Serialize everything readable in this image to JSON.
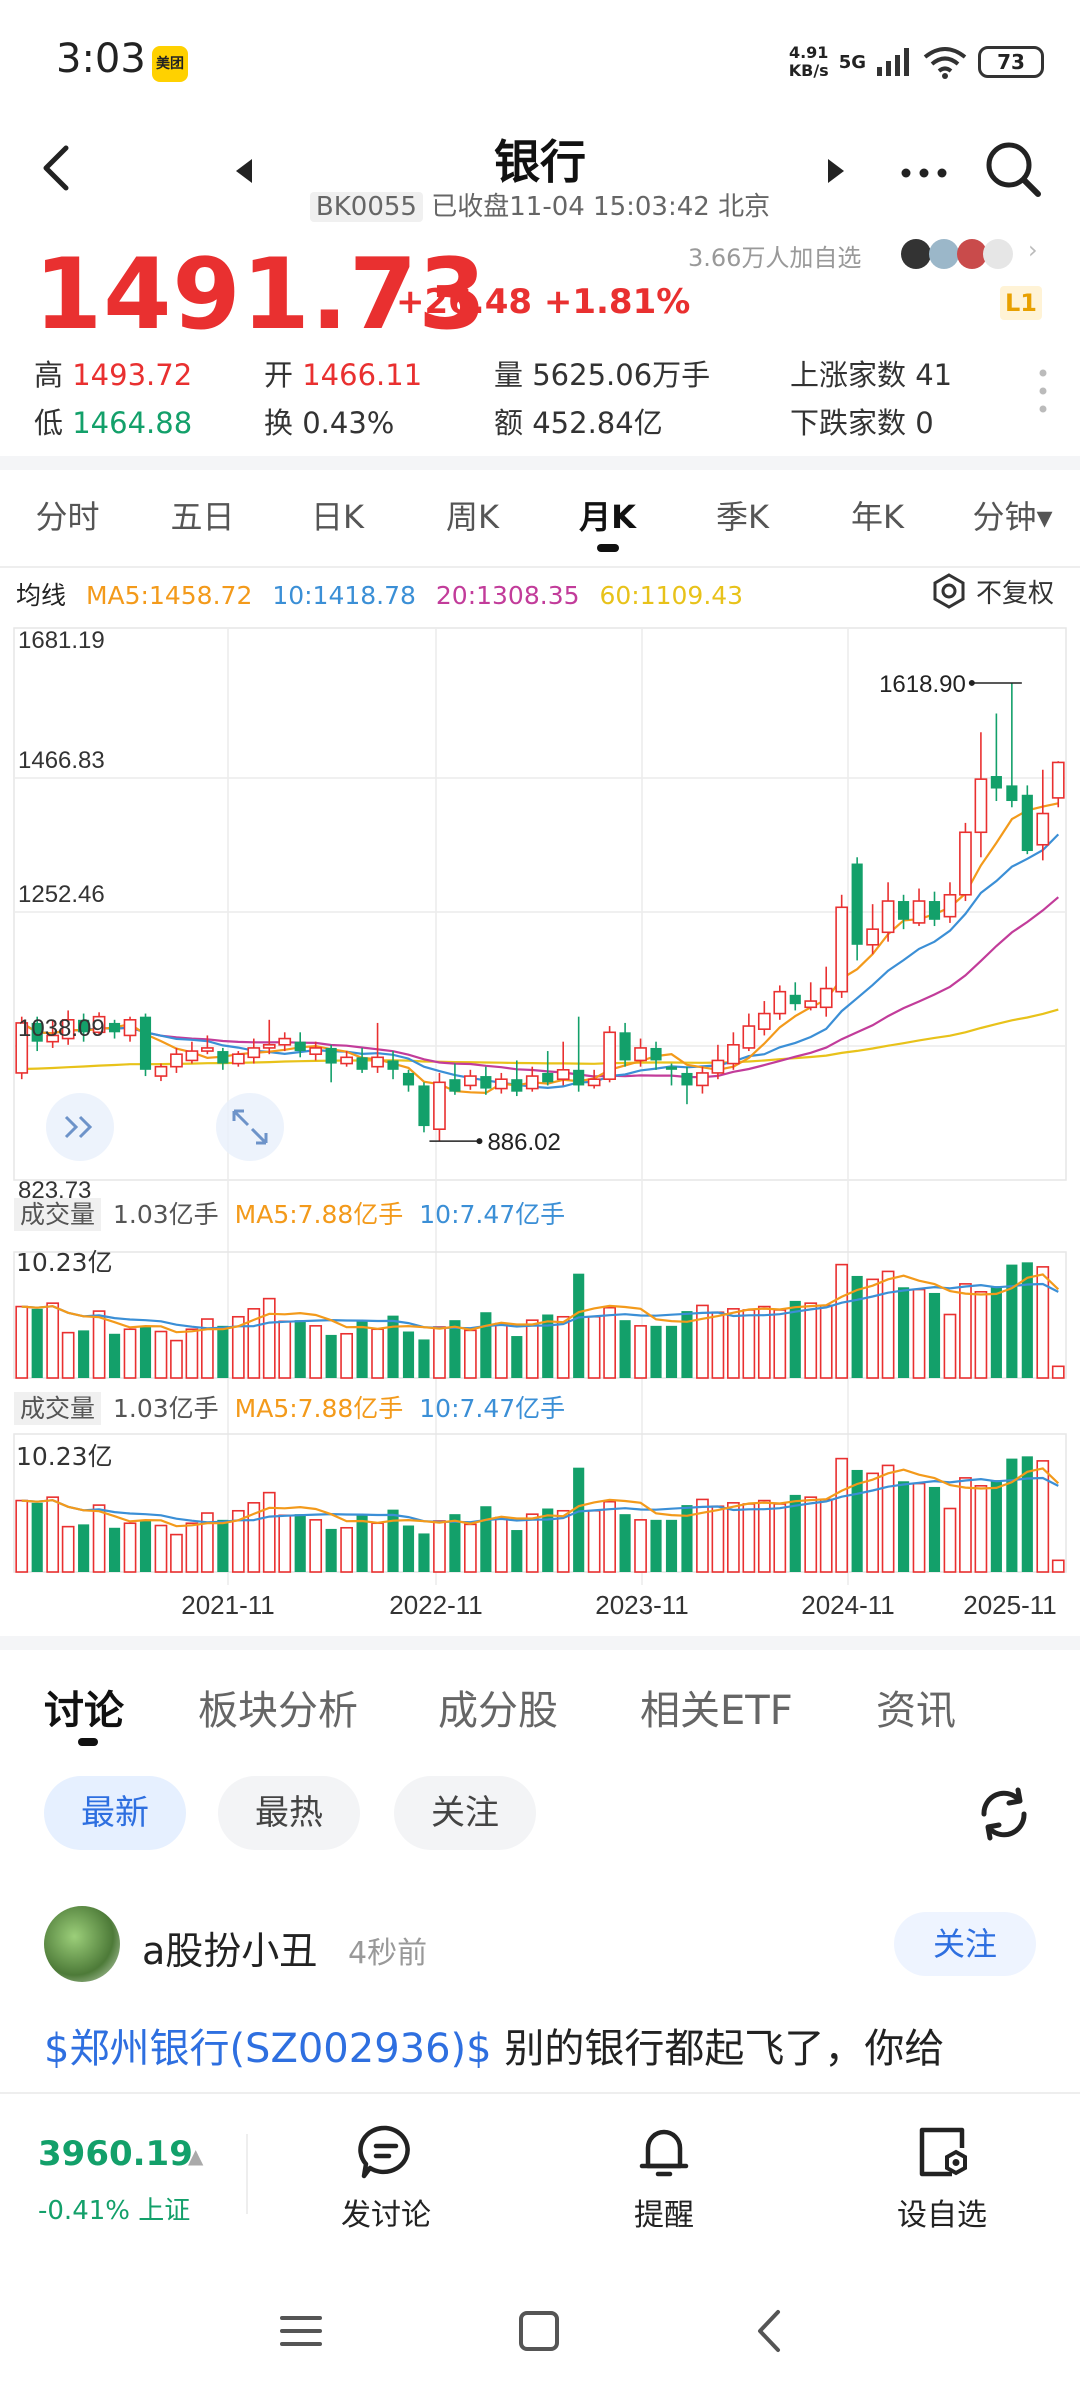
{
  "status_bar": {
    "time": "3:03",
    "app_badge": "美团",
    "net_speed_value": "4.91",
    "net_speed_unit": "KB/s",
    "network": "5G",
    "battery": "73"
  },
  "header": {
    "title": "银行",
    "code": "BK0055",
    "status": "已收盘11-04 15:03:42 北京"
  },
  "quote": {
    "price": "1491.73",
    "change": "+26.48 +1.81%",
    "followers": "3.66万人加自选",
    "level_badge": "L1",
    "high_label": "高",
    "high": "1493.72",
    "low_label": "低",
    "low": "1464.88",
    "open_label": "开",
    "open": "1466.11",
    "turnover_label": "换",
    "turnover": "0.43%",
    "volume_label": "量",
    "volume": "5625.06万手",
    "amount_label": "额",
    "amount": "452.84亿",
    "up_count_label": "上涨家数",
    "up_count": "41",
    "down_count_label": "下跌家数",
    "down_count": "0"
  },
  "period_tabs": [
    "分时",
    "五日",
    "日K",
    "周K",
    "月K",
    "季K",
    "年K",
    "分钟▾"
  ],
  "active_period": "月K",
  "ma_row": {
    "label": "均线",
    "ma5": "MA5:1458.72",
    "ma10": "10:1418.78",
    "ma20": "20:1308.35",
    "ma60": "60:1109.43",
    "adjust": "不复权"
  },
  "colors": {
    "up": "#e93030",
    "down": "#13a06a",
    "ma5": "#f39a1b",
    "ma10": "#3b8fd6",
    "ma20": "#c23c9a",
    "ma60": "#e8c21a",
    "accent": "#2e6fe0"
  },
  "chart_data": [
    {
      "type": "candlestick",
      "title": "",
      "y_ticks": [
        "1681.19",
        "1466.83",
        "1252.46",
        "1038.09",
        "823.73"
      ],
      "ylim": [
        823.73,
        1681.19
      ],
      "x_ticks": [
        "2021-11",
        "2022-11",
        "2023-11",
        "2024-11",
        "2025-11"
      ],
      "annotations": {
        "max": "1618.90",
        "min": "886.02"
      },
      "bars": [
        {
          "o": 995,
          "c": 1075,
          "h": 1085,
          "l": 985
        },
        {
          "o": 1075,
          "c": 1045,
          "h": 1085,
          "l": 1030
        },
        {
          "o": 1045,
          "c": 1055,
          "h": 1080,
          "l": 1035
        },
        {
          "o": 1050,
          "c": 1080,
          "h": 1095,
          "l": 1040
        },
        {
          "o": 1080,
          "c": 1060,
          "h": 1090,
          "l": 1045
        },
        {
          "o": 1060,
          "c": 1085,
          "h": 1092,
          "l": 1055
        },
        {
          "o": 1075,
          "c": 1060,
          "h": 1080,
          "l": 1050
        },
        {
          "o": 1055,
          "c": 1080,
          "h": 1085,
          "l": 1045
        },
        {
          "o": 1085,
          "c": 1000,
          "h": 1090,
          "l": 990
        },
        {
          "o": 990,
          "c": 1005,
          "h": 1010,
          "l": 982
        },
        {
          "o": 1005,
          "c": 1025,
          "h": 1035,
          "l": 995
        },
        {
          "o": 1015,
          "c": 1030,
          "h": 1045,
          "l": 1010
        },
        {
          "o": 1030,
          "c": 1035,
          "h": 1055,
          "l": 1025
        },
        {
          "o": 1030,
          "c": 1010,
          "h": 1035,
          "l": 1000
        },
        {
          "o": 1010,
          "c": 1025,
          "h": 1030,
          "l": 1005
        },
        {
          "o": 1020,
          "c": 1035,
          "h": 1050,
          "l": 1010
        },
        {
          "o": 1035,
          "c": 1040,
          "h": 1080,
          "l": 1025
        },
        {
          "o": 1040,
          "c": 1050,
          "h": 1060,
          "l": 1030
        },
        {
          "o": 1045,
          "c": 1030,
          "h": 1060,
          "l": 1020
        },
        {
          "o": 1025,
          "c": 1035,
          "h": 1045,
          "l": 1015
        },
        {
          "o": 1035,
          "c": 1010,
          "h": 1040,
          "l": 980
        },
        {
          "o": 1010,
          "c": 1020,
          "h": 1030,
          "l": 1005
        },
        {
          "o": 1020,
          "c": 1000,
          "h": 1035,
          "l": 995
        },
        {
          "o": 1005,
          "c": 1020,
          "h": 1075,
          "l": 995
        },
        {
          "o": 1015,
          "c": 1000,
          "h": 1030,
          "l": 985
        },
        {
          "o": 995,
          "c": 975,
          "h": 1000,
          "l": 965
        },
        {
          "o": 975,
          "c": 910,
          "h": 980,
          "l": 900
        },
        {
          "o": 905,
          "c": 980,
          "h": 995,
          "l": 886
        },
        {
          "o": 985,
          "c": 965,
          "h": 1010,
          "l": 960
        },
        {
          "o": 975,
          "c": 990,
          "h": 1000,
          "l": 968
        },
        {
          "o": 990,
          "c": 970,
          "h": 1005,
          "l": 960
        },
        {
          "o": 970,
          "c": 985,
          "h": 995,
          "l": 962
        },
        {
          "o": 985,
          "c": 965,
          "h": 1015,
          "l": 958
        },
        {
          "o": 970,
          "c": 990,
          "h": 1005,
          "l": 965
        },
        {
          "o": 995,
          "c": 980,
          "h": 1030,
          "l": 975
        },
        {
          "o": 985,
          "c": 1000,
          "h": 1045,
          "l": 975
        },
        {
          "o": 1000,
          "c": 975,
          "h": 1085,
          "l": 965
        },
        {
          "o": 975,
          "c": 985,
          "h": 1000,
          "l": 970
        },
        {
          "o": 985,
          "c": 1060,
          "h": 1070,
          "l": 980
        },
        {
          "o": 1060,
          "c": 1015,
          "h": 1075,
          "l": 1005
        },
        {
          "o": 1015,
          "c": 1035,
          "h": 1050,
          "l": 1005
        },
        {
          "o": 1035,
          "c": 1015,
          "h": 1045,
          "l": 1000
        },
        {
          "o": 1005,
          "c": 1000,
          "h": 1010,
          "l": 975
        },
        {
          "o": 995,
          "c": 975,
          "h": 1005,
          "l": 945
        },
        {
          "o": 975,
          "c": 995,
          "h": 1005,
          "l": 962
        },
        {
          "o": 995,
          "c": 1015,
          "h": 1040,
          "l": 985
        },
        {
          "o": 1010,
          "c": 1040,
          "h": 1060,
          "l": 1000
        },
        {
          "o": 1035,
          "c": 1070,
          "h": 1090,
          "l": 1030
        },
        {
          "o": 1065,
          "c": 1090,
          "h": 1110,
          "l": 1055
        },
        {
          "o": 1090,
          "c": 1125,
          "h": 1135,
          "l": 1080
        },
        {
          "o": 1120,
          "c": 1105,
          "h": 1140,
          "l": 1095
        },
        {
          "o": 1100,
          "c": 1110,
          "h": 1140,
          "l": 1095
        },
        {
          "o": 1100,
          "c": 1130,
          "h": 1165,
          "l": 1085
        },
        {
          "o": 1125,
          "c": 1260,
          "h": 1280,
          "l": 1115
        },
        {
          "o": 1330,
          "c": 1200,
          "h": 1340,
          "l": 1175
        },
        {
          "o": 1200,
          "c": 1225,
          "h": 1265,
          "l": 1185
        },
        {
          "o": 1220,
          "c": 1270,
          "h": 1300,
          "l": 1205
        },
        {
          "o": 1270,
          "c": 1240,
          "h": 1280,
          "l": 1225
        },
        {
          "o": 1235,
          "c": 1270,
          "h": 1290,
          "l": 1230
        },
        {
          "o": 1270,
          "c": 1240,
          "h": 1285,
          "l": 1230
        },
        {
          "o": 1245,
          "c": 1280,
          "h": 1300,
          "l": 1235
        },
        {
          "o": 1280,
          "c": 1380,
          "h": 1395,
          "l": 1270
        },
        {
          "o": 1380,
          "c": 1465,
          "h": 1540,
          "l": 1340
        },
        {
          "o": 1470,
          "c": 1450,
          "h": 1570,
          "l": 1430
        },
        {
          "o": 1455,
          "c": 1430,
          "h": 1618.9,
          "l": 1420
        },
        {
          "o": 1440,
          "c": 1350,
          "h": 1455,
          "l": 1345
        },
        {
          "o": 1360,
          "c": 1410,
          "h": 1480,
          "l": 1335
        },
        {
          "o": 1435,
          "c": 1491.73,
          "h": 1493.72,
          "l": 1420
        }
      ]
    },
    {
      "type": "bar",
      "title": "成交量",
      "current": "1.03亿手",
      "ma5": "MA5:7.88亿手",
      "ma10": "10:7.47亿手",
      "ymax_label": "10.23亿",
      "ylim": [
        0,
        10.23
      ]
    },
    {
      "type": "bar",
      "title": "成交量",
      "current": "1.03亿手",
      "ma5": "MA5:7.88亿手",
      "ma10": "10:7.47亿手",
      "ymax_label": "10.23亿",
      "ylim": [
        0,
        10.23
      ]
    }
  ],
  "volumes": [
    6.3,
    6.1,
    6.6,
    4.0,
    4.2,
    5.9,
    3.9,
    4.3,
    4.6,
    4.1,
    3.3,
    4.3,
    5.2,
    4.6,
    5.4,
    6.1,
    7.0,
    5.0,
    5.1,
    4.6,
    3.8,
    3.9,
    5.1,
    4.3,
    5.5,
    4.1,
    3.4,
    4.5,
    5.1,
    4.2,
    5.8,
    4.8,
    3.7,
    5.1,
    5.6,
    5.4,
    9.2,
    5.4,
    6.2,
    5.1,
    4.6,
    4.6,
    4.6,
    5.9,
    6.4,
    5.8,
    6.1,
    6.0,
    6.3,
    6.0,
    6.8,
    6.6,
    6.4,
    10.0,
    9.0,
    8.7,
    9.4,
    8.0,
    7.8,
    7.5,
    5.6,
    8.3,
    7.6,
    8.1,
    10.0,
    10.2,
    9.8,
    1.03
  ],
  "discussion": {
    "tabs": [
      "讨论",
      "板块分析",
      "成分股",
      "相关ETF",
      "资讯"
    ],
    "filters": [
      "最新",
      "最热",
      "关注"
    ],
    "post": {
      "user": "a股扮小丑",
      "time": "4秒前",
      "follow": "关注",
      "link": "$郑州银行(SZ002936)$",
      "text": " 别的银行都起飞了，你给"
    }
  },
  "bottom_bar": {
    "index_value": "3960.19",
    "index_change": "-0.41% 上证",
    "discuss": "发讨论",
    "remind": "提醒",
    "add_watch": "设自选"
  }
}
